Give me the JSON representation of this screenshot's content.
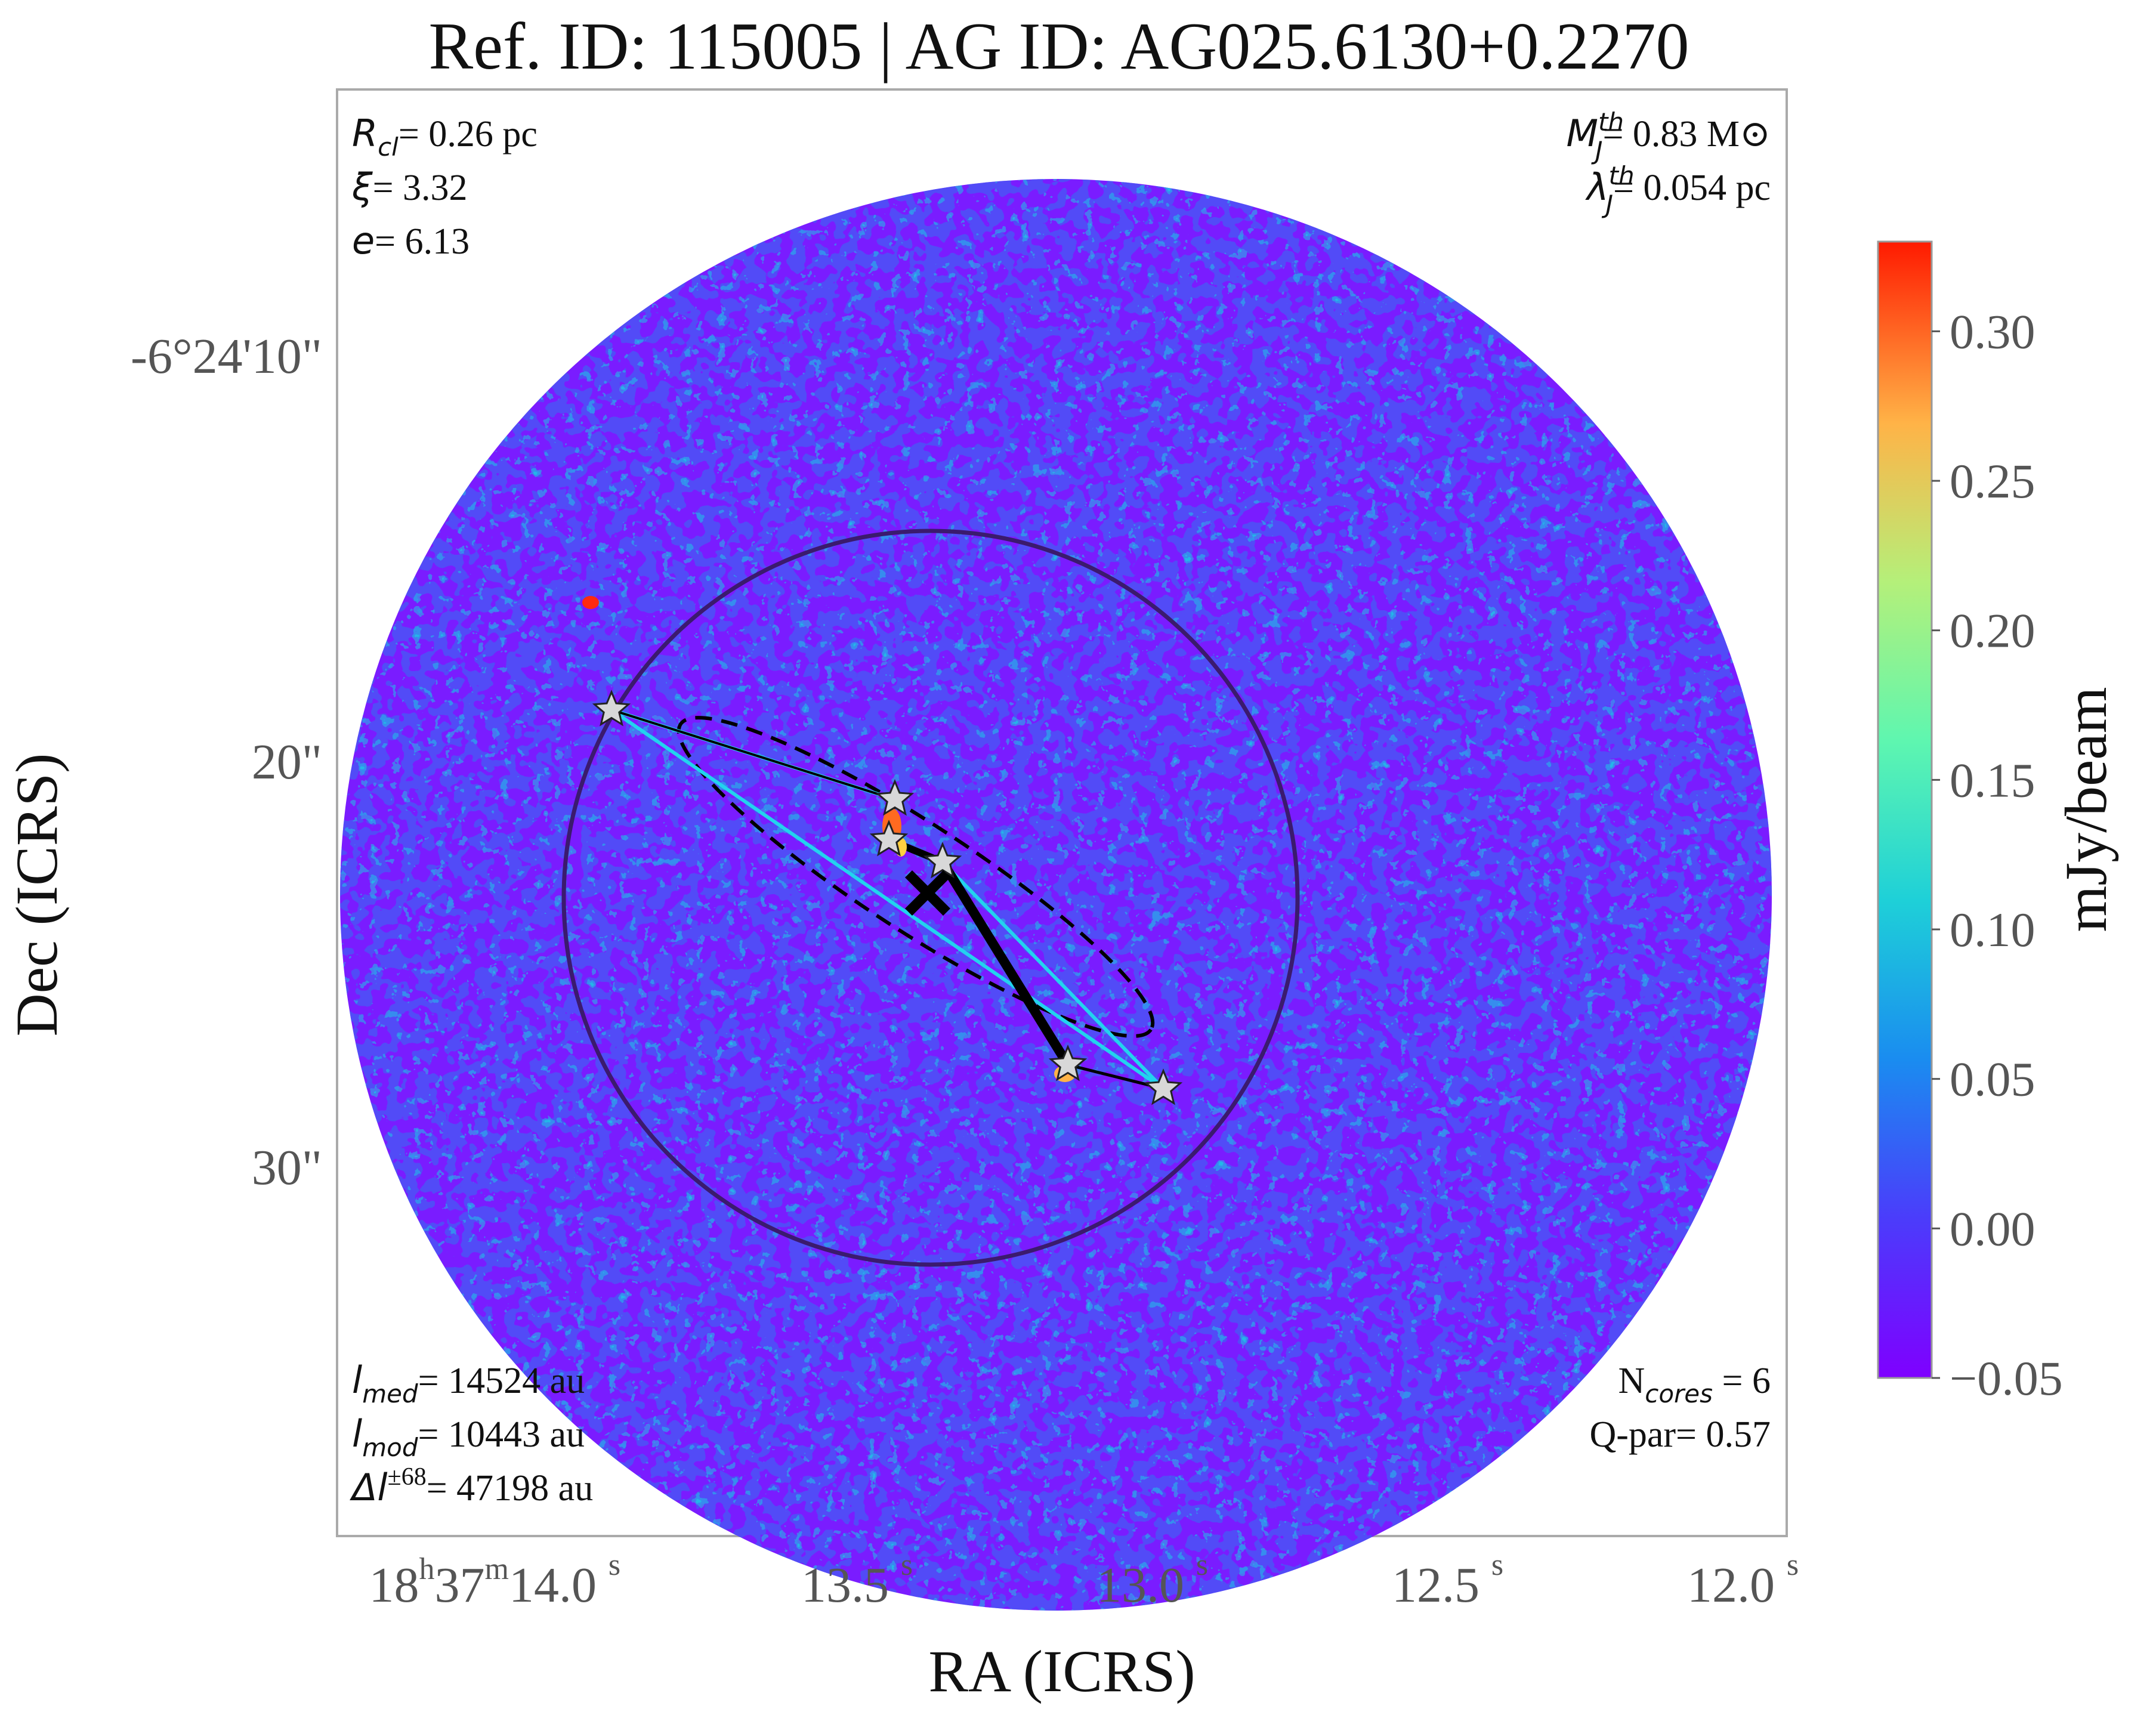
{
  "chart_data": {
    "type": "heatmap",
    "title": "Ref. ID: 115005 | AG ID: AG025.6130+0.2270",
    "xlabel": "RA (ICRS)",
    "ylabel": "Dec (ICRS)",
    "x_ticks": [
      {
        "h": "18",
        "m": "37",
        "s": "14.0"
      },
      {
        "s": "13.5"
      },
      {
        "s": "13.0"
      },
      {
        "s": "12.5"
      },
      {
        "s": "12.0"
      }
    ],
    "y_ticks": [
      "-6°24'10\"",
      "20\"",
      "30\""
    ],
    "colorbar": {
      "label": "mJy/beam",
      "range": [
        -0.05,
        0.33
      ],
      "ticks": [
        "0.30",
        "0.25",
        "0.20",
        "0.15",
        "0.10",
        "0.05",
        "0.00",
        "−0.05"
      ],
      "colormap": "rainbow"
    },
    "annotations": {
      "top_left": [
        {
          "sym": "R",
          "sub": "cl",
          "text": "= 0.26 pc"
        },
        {
          "sym": "ξ",
          "text": "= 3.32"
        },
        {
          "sym": "e",
          "text": "= 6.13"
        }
      ],
      "top_right": [
        {
          "sym": "M",
          "sub": "J",
          "sup": "th",
          "text": "= 0.83 M⊙"
        },
        {
          "sym": "λ",
          "sub": "J",
          "sup": "th",
          "text": "= 0.054 pc"
        }
      ],
      "bottom_left": [
        {
          "sym": "l",
          "sub": "med",
          "text": "= 14524 au"
        },
        {
          "sym": "l",
          "sub": "mod",
          "text": "= 10443 au"
        },
        {
          "sym": "Δl",
          "sup": "±68",
          "text": "= 47198 au"
        }
      ],
      "bottom_right": [
        {
          "pre": "N",
          "sub": "cores",
          "text": " = 6"
        },
        {
          "pre": "Q-par",
          "text": "= 0.57"
        }
      ]
    },
    "n_cores": 6,
    "colors": {
      "big_circle": "#3b1a6e",
      "mst_edge": "#000000",
      "cyan_edge": "#22d3ee",
      "fit_ellipse": "#000000",
      "star_fill": "#d8d8d8"
    }
  }
}
